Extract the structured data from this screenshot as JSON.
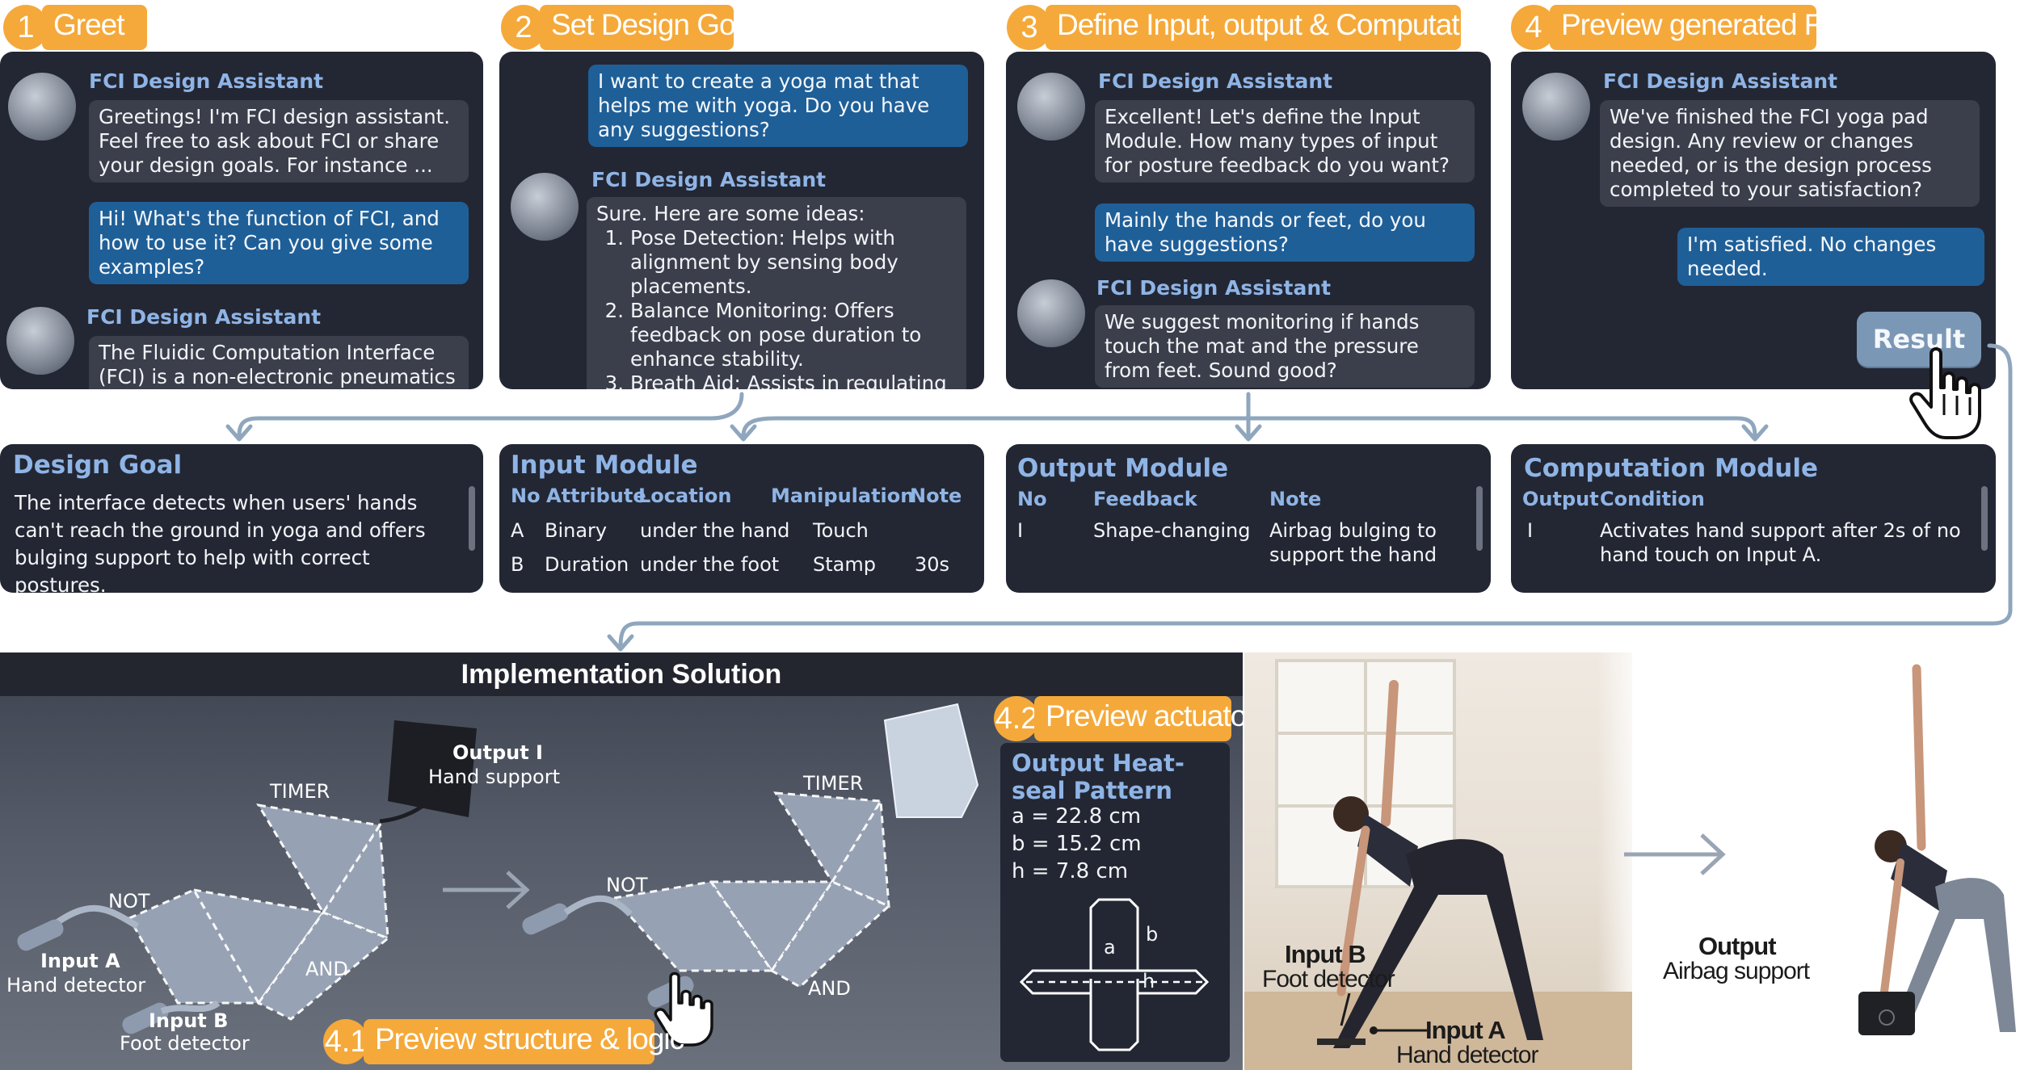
{
  "steps": [
    {
      "num": "1",
      "label": "Greet"
    },
    {
      "num": "2",
      "label": "Set Design Goal"
    },
    {
      "num": "3",
      "label": "Define Input, output & Computation"
    },
    {
      "num": "4",
      "label": "Preview generated FCI"
    }
  ],
  "assistant_name": "FCI Design Assistant",
  "chat1": {
    "a1": "Greetings! I'm FCI design assistant. Feel free to ask about FCI or share your design goals. For instance ...",
    "u1": "Hi! What's the function of FCI, and how to use it? Can you give some examples?",
    "a2": "The Fluidic Computation Interface (FCI) is a non-electronic pneumatics"
  },
  "chat2": {
    "u1": "I want to create a yoga mat that helps me with yoga. Do you have any suggestions?",
    "a_intro": "Sure. Here are some ideas:",
    "ideas": [
      {
        "n": "1.",
        "text": "Pose Detection: Helps with alignment by sensing body placements."
      },
      {
        "n": "2.",
        "text": "Balance Monitoring: Offers feedback on pose duration to enhance stability."
      },
      {
        "n": "3.",
        "text": "Breath Aid: Assists in regulating"
      }
    ]
  },
  "chat3": {
    "a1": "Excellent! Let's define the Input Module. How many types of input for posture feedback do you want?",
    "u1": "Mainly the hands or feet, do you have suggestions?",
    "a2": "We suggest monitoring if hands touch the mat and the pressure from feet. Sound good?"
  },
  "chat4": {
    "a1": "We've finished the FCI yoga pad design. Any review or changes needed, or is the design process completed to your satisfaction?",
    "u1": "I'm satisfied. No changes needed.",
    "result_button": "Result"
  },
  "design_goal": {
    "title": "Design Goal",
    "text": "The interface detects when users' hands can't reach the ground in yoga and offers bulging support to help with correct postures."
  },
  "input_module": {
    "title": "Input Module",
    "headers": [
      "No",
      "Attribute",
      "Location",
      "Manipulation",
      "Note"
    ],
    "rows": [
      [
        "A",
        "Binary",
        "under the hand",
        "Touch",
        ""
      ],
      [
        "B",
        "Duration",
        "under the foot",
        "Stamp",
        "30s"
      ]
    ]
  },
  "output_module": {
    "title": "Output Module",
    "headers": [
      "No",
      "Feedback",
      "Note"
    ],
    "rows": [
      [
        "I",
        "Shape-changing",
        "Airbag bulging to support the hand"
      ]
    ]
  },
  "computation_module": {
    "title": "Computation Module",
    "headers": [
      "Output",
      "Condition"
    ],
    "rows": [
      [
        "I",
        "Activates hand support after 2s of no hand touch on Input A."
      ]
    ]
  },
  "implementation": {
    "title": "Implementation Solution",
    "output_i": "Output I",
    "hand_support": "Hand support",
    "timer": "TIMER",
    "not": "NOT",
    "and": "AND",
    "input_a": "Input A",
    "hand_detector": "Hand detector",
    "input_b": "Input B",
    "foot_detector": "Foot detector",
    "substep_41_num": "4.1",
    "substep_41_label": "Preview structure & logic",
    "substep_42_num": "4.2",
    "substep_42_label": "Preview actuator"
  },
  "heatseal": {
    "title": "Output Heat-seal Pattern",
    "a": "a = 22.8 cm",
    "b": "b = 15.2 cm",
    "h": "h = 7.8 cm",
    "label_a": "a",
    "label_b": "b",
    "label_h": "h"
  },
  "photo": {
    "input_b": "Input B",
    "foot_detector": "Foot detector",
    "input_a": "Input A",
    "hand_detector": "Hand detector",
    "output": "Output",
    "airbag_support": "Airbag support"
  },
  "colors": {
    "accent_orange": "#f5a93a",
    "panel_bg": "#232733",
    "assistant_blue": "#8fb4e6",
    "user_bubble": "#1f5f98",
    "assistant_bubble": "#3b3f4b",
    "connector": "#8fa6bd"
  }
}
